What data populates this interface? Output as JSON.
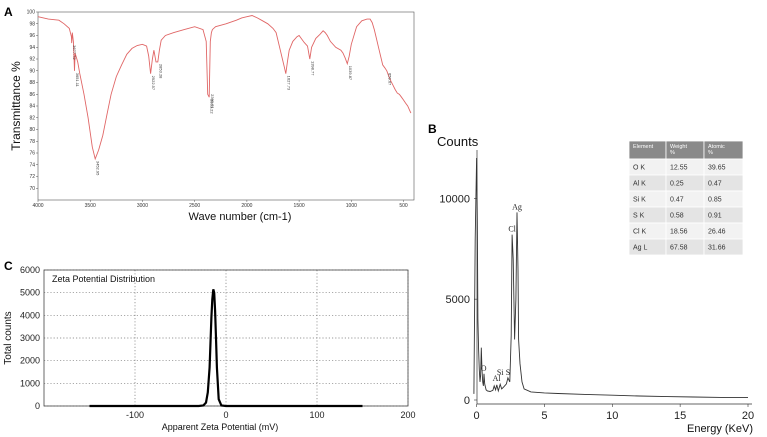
{
  "panels": {
    "a": {
      "letter": "A"
    },
    "b": {
      "letter": "B"
    },
    "c": {
      "letter": "C"
    }
  },
  "chart_data": [
    {
      "id": "ftir",
      "type": "line",
      "xlabel": "Wave number (cm-1)",
      "ylabel": "Transmittance %",
      "xlim": [
        4000,
        400
      ],
      "ylim": [
        68,
        100
      ],
      "x_ticks": [
        4000,
        3500,
        3000,
        2500,
        2000,
        1500,
        1000,
        500
      ],
      "y_ticks": [
        70,
        72,
        74,
        76,
        78,
        80,
        82,
        84,
        86,
        88,
        90,
        92,
        94,
        96,
        98,
        100
      ],
      "grid": false,
      "line_color": "#e06666",
      "series": [
        {
          "x": [
            4000,
            3900,
            3800,
            3750,
            3700,
            3680,
            3677,
            3672,
            3660,
            3651,
            3645,
            3620,
            3600,
            3560,
            3520,
            3480,
            3452,
            3420,
            3380,
            3340,
            3300,
            3250,
            3200,
            3150,
            3100,
            3050,
            3000,
            2960,
            2940,
            2922,
            2905,
            2890,
            2870,
            2853,
            2838,
            2820,
            2780,
            2700,
            2600,
            2500,
            2420,
            2390,
            2375,
            2361,
            2350,
            2340,
            2330,
            2300,
            2200,
            2100,
            2050,
            2000,
            1950,
            1900,
            1850,
            1800,
            1750,
            1720,
            1700,
            1680,
            1660,
            1640,
            1627,
            1612,
            1595,
            1560,
            1520,
            1500,
            1480,
            1450,
            1420,
            1398,
            1380,
            1340,
            1300,
            1270,
            1250,
            1230,
            1200,
            1150,
            1100,
            1080,
            1060,
            1039,
            1020,
            1000,
            950,
            900,
            850,
            820,
            800,
            780,
            760,
            740,
            720,
            700,
            680,
            660,
            640,
            620,
            600,
            580,
            560,
            540,
            520,
            500,
            480,
            460,
            440,
            430
          ],
          "y": [
            99.2,
            98.8,
            98.6,
            98.0,
            97.2,
            95.8,
            94.7,
            96.5,
            94.8,
            90.0,
            93.0,
            91.5,
            89.5,
            86.0,
            82.0,
            77.0,
            75.0,
            76.5,
            79.0,
            82.5,
            86.0,
            89.0,
            91.0,
            92.8,
            93.8,
            94.3,
            94.5,
            94.2,
            92.5,
            89.5,
            92.0,
            93.5,
            91.5,
            91.5,
            93.5,
            95.2,
            96.0,
            96.5,
            97.0,
            97.5,
            97.0,
            95.0,
            86.0,
            85.5,
            95.0,
            96.5,
            97.0,
            97.5,
            98.0,
            98.6,
            99.0,
            99.2,
            99.4,
            99.0,
            98.5,
            98.0,
            97.2,
            96.5,
            95.0,
            93.5,
            92.0,
            90.5,
            89.5,
            91.5,
            93.5,
            95.0,
            95.8,
            96.0,
            95.5,
            94.8,
            94.2,
            92.0,
            94.0,
            95.5,
            96.2,
            96.8,
            96.5,
            96.0,
            95.0,
            94.0,
            93.5,
            93.0,
            92.2,
            91.2,
            92.5,
            94.5,
            97.5,
            98.5,
            98.8,
            98.8,
            98.2,
            97.0,
            95.5,
            94.0,
            92.5,
            91.0,
            90.5,
            90.0,
            89.0,
            88.2,
            87.5,
            86.8,
            86.2,
            86.0,
            85.5,
            85.0,
            84.5,
            84.0,
            83.2,
            82.8
          ]
        }
      ],
      "annotations": [
        {
          "text": "3677.72",
          "x": 3677
        },
        {
          "text": "3651.11",
          "x": 3651
        },
        {
          "text": "3452.95",
          "x": 3452
        },
        {
          "text": "2922.57",
          "x": 2922
        },
        {
          "text": "2853.28",
          "x": 2853
        },
        {
          "text": "2361.22",
          "x": 2361
        },
        {
          "text": "2360.71",
          "x": 2360
        },
        {
          "text": "1627.73",
          "x": 1627
        },
        {
          "text": "1398.77",
          "x": 1398
        },
        {
          "text": "1039.87",
          "x": 1039
        },
        {
          "text": "659.67",
          "x": 659
        }
      ]
    },
    {
      "id": "eds",
      "type": "line",
      "title": "Counts",
      "xlabel": "Energy (KeV)",
      "xlim": [
        -1,
        20
      ],
      "ylim": [
        0,
        12000
      ],
      "x_ticks": [
        0,
        5,
        10,
        15,
        20
      ],
      "y_ticks": [
        0,
        5000,
        10000
      ],
      "grid": false,
      "line_color": "#333333",
      "series": [
        {
          "x": [
            -0.2,
            -0.1,
            0.0,
            0.05,
            0.1,
            0.15,
            0.2,
            0.25,
            0.3,
            0.35,
            0.4,
            0.45,
            0.5,
            0.55,
            0.6,
            0.7,
            0.8,
            1.0,
            1.2,
            1.3,
            1.4,
            1.49,
            1.6,
            1.74,
            1.85,
            2.0,
            2.2,
            2.31,
            2.45,
            2.55,
            2.62,
            2.7,
            2.8,
            2.9,
            2.98,
            3.05,
            3.1,
            3.2,
            3.35,
            3.5,
            4.0,
            5.0,
            6.0,
            8.0,
            10.0,
            12.0,
            14.0,
            16.0,
            18.0,
            20.0
          ],
          "y": [
            300,
            8000,
            12000,
            9000,
            4000,
            2500,
            1500,
            900,
            1200,
            2600,
            1500,
            900,
            700,
            1300,
            800,
            500,
            450,
            420,
            480,
            700,
            500,
            750,
            450,
            780,
            550,
            650,
            800,
            1100,
            900,
            3200,
            8200,
            7000,
            3000,
            5000,
            9300,
            6500,
            3000,
            1800,
            900,
            550,
            400,
            350,
            320,
            280,
            240,
            200,
            170,
            150,
            130,
            120
          ]
        }
      ],
      "peak_labels": [
        {
          "text": "O",
          "x": 0.52,
          "y": 1300
        },
        {
          "text": "Al",
          "x": 1.48,
          "y": 800
        },
        {
          "text": "Si",
          "x": 1.74,
          "y": 1100
        },
        {
          "text": "S",
          "x": 2.31,
          "y": 1100
        },
        {
          "text": "Cl",
          "x": 2.62,
          "y": 8200
        },
        {
          "text": "Ag",
          "x": 2.98,
          "y": 9300
        }
      ],
      "table": {
        "headers": [
          "Element",
          "Weight\n%",
          "Atomic\n%"
        ],
        "rows": [
          [
            "O  K",
            "12.55",
            "39.65"
          ],
          [
            "Al  K",
            "0.25",
            "0.47"
          ],
          [
            "Si K",
            "0.47",
            "0.85"
          ],
          [
            "S K",
            "0.58",
            "0.91"
          ],
          [
            "Cl K",
            "18.56",
            "26.46"
          ],
          [
            "Ag L",
            "67.58",
            "31.66"
          ]
        ]
      }
    },
    {
      "id": "zeta",
      "type": "line",
      "title": "Zeta Potential Distribution",
      "xlabel": "Apparent Zeta Potential (mV)",
      "ylabel": "Total counts",
      "xlim": [
        -200,
        200
      ],
      "ylim": [
        0,
        6000
      ],
      "x_ticks": [
        -100,
        0,
        100,
        200
      ],
      "y_ticks": [
        0,
        1000,
        2000,
        3000,
        4000,
        5000,
        6000
      ],
      "grid": true,
      "line_color": "#000000",
      "series": [
        {
          "x": [
            -150,
            -60,
            -40,
            -30,
            -25,
            -22,
            -20,
            -18,
            -17,
            -16,
            -15,
            -14,
            -13,
            -12,
            -11,
            -10,
            -8,
            -5,
            0,
            50,
            150
          ],
          "y": [
            0,
            0,
            0,
            0,
            20,
            150,
            600,
            1700,
            2800,
            3900,
            4700,
            5150,
            5000,
            4200,
            3000,
            1700,
            300,
            20,
            0,
            0,
            0
          ]
        }
      ]
    }
  ]
}
